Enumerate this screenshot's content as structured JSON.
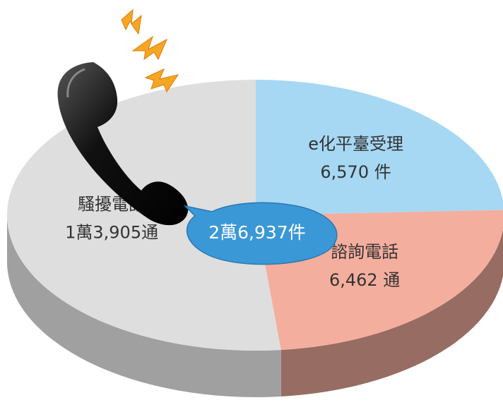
{
  "chart_data": {
    "type": "pie",
    "categories": [
      "e化平臺受理",
      "諮詢電話",
      "騷擾電話"
    ],
    "values": [
      6570,
      6462,
      13905
    ],
    "value_labels": [
      "6,570 件",
      "6,462 通",
      "1萬3,905通"
    ],
    "colors": [
      "#a6d8f3",
      "#f4ae9e",
      "#dedede"
    ],
    "annotation": "2萬6,937件"
  }
}
